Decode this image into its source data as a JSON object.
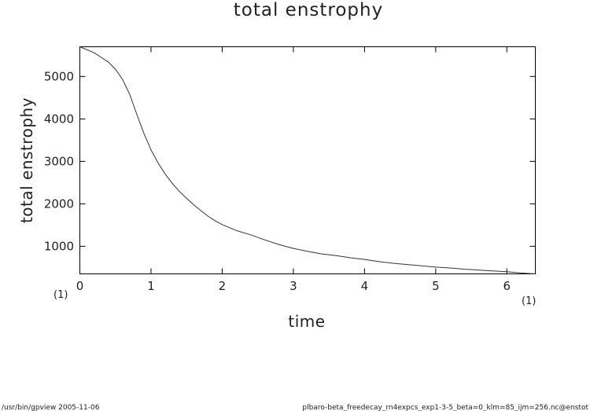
{
  "chart_data": {
    "type": "line",
    "title": "total enstrophy",
    "xlabel": "time",
    "ylabel": "total enstrophy",
    "xlim": [
      0,
      6.4
    ],
    "ylim": [
      350,
      5700
    ],
    "x_ticks": [
      0,
      1,
      2,
      3,
      4,
      5,
      6
    ],
    "y_ticks": [
      1000,
      2000,
      3000,
      4000,
      5000
    ],
    "x_tick_labels": [
      "0",
      "1",
      "2",
      "3",
      "4",
      "5",
      "6"
    ],
    "y_tick_labels": [
      "1000",
      "2000",
      "3000",
      "4000",
      "5000"
    ],
    "grid": false,
    "x_unit_left": "(1)",
    "x_unit_right": "(1)",
    "series": [
      {
        "values": [
          [
            0.0,
            5700
          ],
          [
            0.2,
            5560
          ],
          [
            0.4,
            5340
          ],
          [
            0.5,
            5170
          ],
          [
            0.6,
            4930
          ],
          [
            0.7,
            4580
          ],
          [
            0.8,
            4110
          ],
          [
            0.9,
            3660
          ],
          [
            1.0,
            3270
          ],
          [
            1.1,
            2960
          ],
          [
            1.2,
            2700
          ],
          [
            1.3,
            2480
          ],
          [
            1.4,
            2290
          ],
          [
            1.5,
            2130
          ],
          [
            1.6,
            1980
          ],
          [
            1.7,
            1840
          ],
          [
            1.8,
            1710
          ],
          [
            1.9,
            1600
          ],
          [
            2.0,
            1510
          ],
          [
            2.2,
            1370
          ],
          [
            2.4,
            1270
          ],
          [
            2.6,
            1150
          ],
          [
            2.8,
            1040
          ],
          [
            3.0,
            950
          ],
          [
            3.2,
            880
          ],
          [
            3.4,
            820
          ],
          [
            3.6,
            780
          ],
          [
            3.8,
            730
          ],
          [
            4.0,
            690
          ],
          [
            4.2,
            640
          ],
          [
            4.4,
            600
          ],
          [
            4.6,
            570
          ],
          [
            4.8,
            540
          ],
          [
            5.0,
            510
          ],
          [
            5.2,
            490
          ],
          [
            5.4,
            460
          ],
          [
            5.6,
            440
          ],
          [
            5.8,
            420
          ],
          [
            6.0,
            400
          ],
          [
            6.2,
            370
          ],
          [
            6.4,
            350
          ]
        ]
      }
    ]
  },
  "footer": {
    "left": "/usr/bin/gpview   2005-11-06",
    "right": "plbaro-beta_freedecay_rn4expcs_exp1-3-5_beta=0_klm=85_ijm=256.nc@enstot"
  }
}
